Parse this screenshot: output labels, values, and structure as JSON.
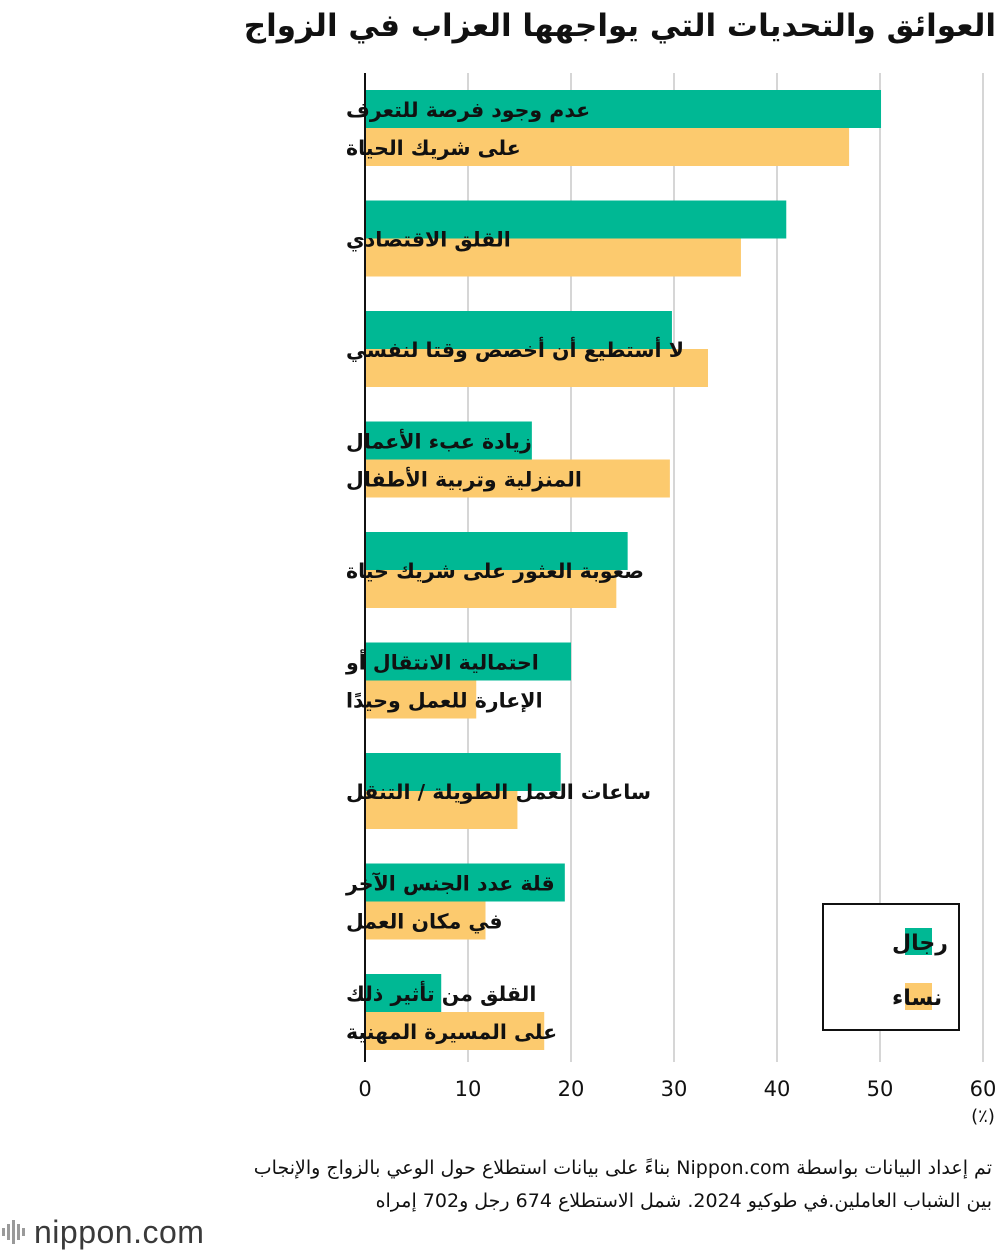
{
  "title": "العوائق والتحديات التي يواجهها العزاب في الزواج",
  "chart_data": {
    "type": "bar",
    "orientation": "horizontal",
    "categories": [
      [
        "عدم وجود فرصة للتعرف",
        "على شريك الحياة"
      ],
      [
        "القلق الاقتصادي"
      ],
      [
        "لا أستطيع أن أخصص وقتا لنفسي"
      ],
      [
        "زيادة عبء الأعمال",
        "المنزلية وتربية الأطفال"
      ],
      [
        "صعوبة العثور على شريك حياة"
      ],
      [
        "احتمالية الانتقال أو",
        "الإعارة للعمل وحيدًا"
      ],
      [
        "ساعات العمل الطويلة / التنقل"
      ],
      [
        "قلة عدد الجنس الآخر",
        "في مكان العمل"
      ],
      [
        "القلق من تأثير ذلك",
        "على المسيرة المهنية"
      ]
    ],
    "series": [
      {
        "name": "رجال",
        "color": "#00b894",
        "values": [
          50.1,
          40.9,
          29.8,
          16.2,
          25.5,
          20.0,
          19.0,
          19.4,
          7.4
        ]
      },
      {
        "name": "نساء",
        "color": "#fcca6e",
        "values": [
          47.0,
          36.5,
          33.3,
          29.6,
          24.4,
          10.8,
          14.8,
          11.7,
          17.4
        ]
      }
    ],
    "xlim": [
      0,
      60
    ],
    "xticks": [
      "0",
      "10",
      "20",
      "30",
      "40",
      "50",
      "60"
    ],
    "xunit": "(٪)",
    "grid": true,
    "legend_position": "bottom-right"
  },
  "note": "تم إعداد البيانات بواسطة Nippon.com بناءً على بيانات استطلاع حول الوعي بالزواج والإنجاب بين الشباب العاملين.في طوكيو 2024. شمل الاستطلاع 674 رجل و702 إمراه",
  "logo": {
    "text": "nippon.com",
    "icon": "nippon-logo-icon"
  }
}
